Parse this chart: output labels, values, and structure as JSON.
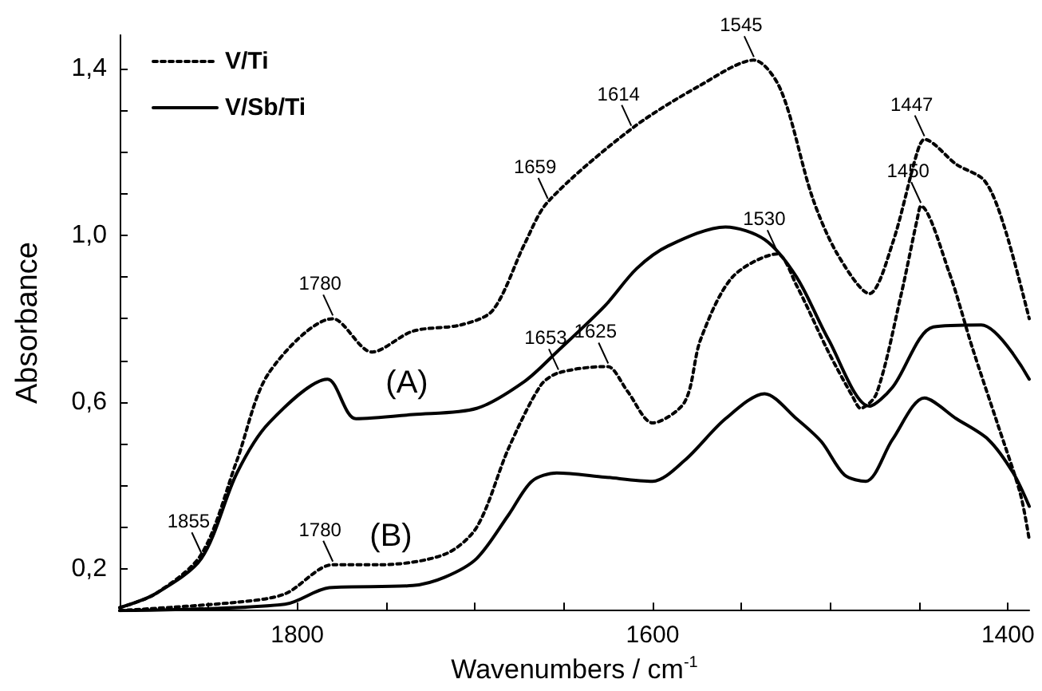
{
  "chart_data": {
    "type": "line",
    "xlabel": "Wavenumbers / cm$^{-1}$",
    "ylabel": "Absorbance",
    "xlim": [
      1900,
      1388
    ],
    "ylim": [
      0.1,
      1.48
    ],
    "xticks": [
      1800,
      1600,
      1400,
      {
        "value": 1850,
        "label": null
      },
      {
        "value": 1750,
        "label": null
      },
      {
        "value": 1700,
        "label": null
      },
      {
        "value": 1650,
        "label": null
      },
      {
        "value": 1550,
        "label": null
      },
      {
        "value": 1500,
        "label": null
      },
      {
        "value": 1450,
        "label": null
      }
    ],
    "yticks": [
      {
        "value": 0.2,
        "label": "0,2"
      },
      {
        "value": 0.6,
        "label": "0,6"
      },
      {
        "value": 1.0,
        "label": "1,0"
      },
      {
        "value": 1.4,
        "label": "1,4"
      },
      {
        "value": 0.3,
        "label": null
      },
      {
        "value": 0.4,
        "label": null
      },
      {
        "value": 0.5,
        "label": null
      },
      {
        "value": 0.7,
        "label": null
      },
      {
        "value": 0.8,
        "label": null
      },
      {
        "value": 0.9,
        "label": null
      },
      {
        "value": 1.1,
        "label": null
      },
      {
        "value": 1.2,
        "label": null
      },
      {
        "value": 1.3,
        "label": null
      }
    ],
    "grid": false,
    "legend": "top left",
    "marker": "none",
    "series": [
      {
        "name": "V/Ti",
        "color": "#000000",
        "line_style": "dotted",
        "x": [
          1900,
          1880,
          1854,
          1834,
          1816,
          1780,
          1758,
          1735,
          1708,
          1690,
          1672,
          1659,
          1612,
          1573,
          1543,
          1528,
          1510,
          1496,
          1478,
          1465,
          1451,
          1447,
          1429,
          1413,
          1402,
          1388
        ],
        "values": [
          0.107,
          0.14,
          0.235,
          0.46,
          0.67,
          0.8,
          0.72,
          0.77,
          0.785,
          0.82,
          0.98,
          1.08,
          1.255,
          1.36,
          1.42,
          1.35,
          1.09,
          0.955,
          0.86,
          0.98,
          1.2,
          1.23,
          1.17,
          1.13,
          1.02,
          0.8
        ]
      },
      {
        "name": "V/Sb/Ti",
        "color": "#000000",
        "line_style": "solid",
        "x": [
          1900,
          1880,
          1854,
          1834,
          1816,
          1783,
          1767,
          1735,
          1699,
          1672,
          1654,
          1627,
          1609,
          1591,
          1559,
          1537,
          1519,
          1501,
          1478,
          1465,
          1442,
          1415,
          1388
        ],
        "values": [
          0.107,
          0.14,
          0.225,
          0.43,
          0.55,
          0.655,
          0.56,
          0.57,
          0.585,
          0.65,
          0.72,
          0.83,
          0.92,
          0.975,
          1.02,
          0.99,
          0.9,
          0.75,
          0.59,
          0.635,
          0.78,
          0.785,
          0.655
        ]
      },
      {
        "color": "#000000",
        "line_style": "dotted",
        "x": [
          1900,
          1834,
          1807,
          1780,
          1753,
          1717,
          1699,
          1681,
          1663,
          1653,
          1627,
          1625,
          1614,
          1600,
          1582,
          1573,
          1555,
          1530,
          1519,
          1501,
          1487,
          1483,
          1474,
          1460,
          1451,
          1449,
          1433,
          1420,
          1406,
          1393,
          1388
        ],
        "values": [
          0.1,
          0.12,
          0.14,
          0.21,
          0.21,
          0.235,
          0.3,
          0.49,
          0.64,
          0.67,
          0.685,
          0.685,
          0.625,
          0.55,
          0.6,
          0.75,
          0.9,
          0.955,
          0.88,
          0.72,
          0.61,
          0.585,
          0.62,
          0.86,
          1.04,
          1.07,
          0.91,
          0.73,
          0.55,
          0.38,
          0.27
        ]
      },
      {
        "color": "#000000",
        "line_style": "solid",
        "x": [
          1900,
          1807,
          1782,
          1735,
          1717,
          1699,
          1681,
          1668,
          1654,
          1627,
          1600,
          1582,
          1559,
          1537,
          1519,
          1505,
          1492,
          1480,
          1465,
          1447,
          1429,
          1411,
          1397,
          1388
        ],
        "values": [
          0.1,
          0.115,
          0.155,
          0.16,
          0.18,
          0.225,
          0.33,
          0.41,
          0.43,
          0.42,
          0.41,
          0.46,
          0.56,
          0.62,
          0.56,
          0.505,
          0.425,
          0.41,
          0.51,
          0.61,
          0.56,
          0.51,
          0.43,
          0.35
        ]
      }
    ],
    "annotations": [
      {
        "text": "1855",
        "x": 1854,
        "y": 0.23
      },
      {
        "text": "1780",
        "x": 1780,
        "y": 0.8
      },
      {
        "text": "1659",
        "x": 1659,
        "y": 1.08
      },
      {
        "text": "1614",
        "x": 1612,
        "y": 1.255
      },
      {
        "text": "1545",
        "x": 1543,
        "y": 1.42
      },
      {
        "text": "1447",
        "x": 1447,
        "y": 1.23
      },
      {
        "text": "1450",
        "x": 1449,
        "y": 1.07
      },
      {
        "text": "1530",
        "x": 1530,
        "y": 0.955
      },
      {
        "text": "1653",
        "x": 1653,
        "y": 0.67
      },
      {
        "text": "1625",
        "x": 1625,
        "y": 0.685
      },
      {
        "text": "1780",
        "x": 1780,
        "y": 0.21
      },
      "(A)",
      "(B)"
    ]
  }
}
